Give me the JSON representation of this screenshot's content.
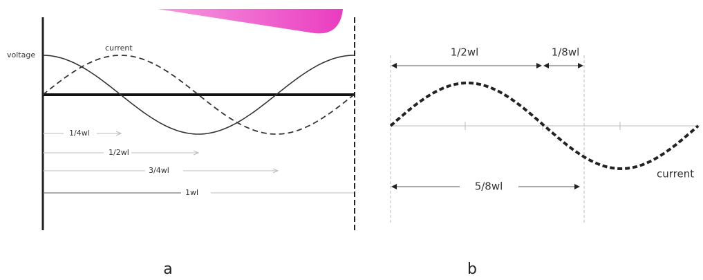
{
  "panel_a": {
    "labels": {
      "voltage": "voltage",
      "current": "current"
    },
    "dimensions": [
      "1/4wl",
      "1/2wl",
      "3/4wl",
      "1wl"
    ],
    "caption": "a"
  },
  "panel_b": {
    "dimensions": {
      "top_left": "1/2wl",
      "top_right": "1/8wl",
      "bottom": "5/8wl"
    },
    "curve_label": "current",
    "caption": "b"
  }
}
